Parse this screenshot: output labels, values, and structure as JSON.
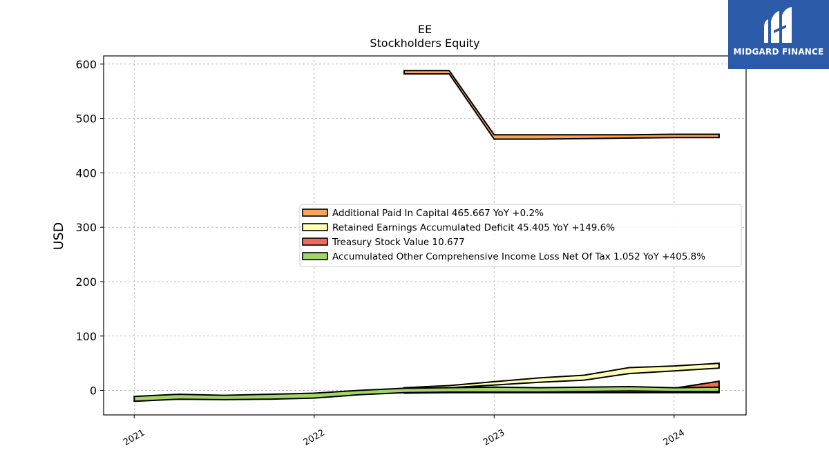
{
  "chart_data": {
    "type": "area",
    "title": "EE",
    "subtitle": "Stockholders  Equity",
    "ylabel": "USD",
    "xlabel": "",
    "ylim": [
      -45,
      615
    ],
    "xlim": [
      2020.83,
      2024.4
    ],
    "yticks": [
      0,
      100,
      200,
      300,
      400,
      500,
      600
    ],
    "xticks": [
      2021,
      2022,
      2023,
      2024
    ],
    "xtick_labels": [
      "2021",
      "2022",
      "2023",
      "2024"
    ],
    "grid": true,
    "legend_position": "center-right",
    "series": [
      {
        "name": "Additional Paid In Capital  465.667 YoY +0.2%",
        "color": "#f9a65a",
        "x": [
          2022.5,
          2022.75,
          2023.0,
          2023.25,
          2023.5,
          2023.75,
          2024.0,
          2024.25
        ],
        "lower": [
          582,
          582,
          462,
          462,
          463,
          464,
          465,
          465
        ],
        "upper": [
          588,
          588,
          470,
          470,
          470,
          470,
          471,
          471
        ]
      },
      {
        "name": "Retained Earnings Accumulated Deficit  45.405 YoY +149.6%",
        "color": "#ffffb3",
        "x": [
          2022.5,
          2022.75,
          2023.0,
          2023.25,
          2023.5,
          2023.75,
          2024.0,
          2024.25
        ],
        "lower": [
          2,
          5,
          10,
          15,
          19,
          31,
          36,
          41
        ],
        "upper": [
          5,
          9,
          16,
          23,
          28,
          42,
          45,
          50
        ]
      },
      {
        "name": "Treasury Stock Value  10.677",
        "color": "#ef6b5e",
        "x": [
          2022.5,
          2022.75,
          2023.0,
          2023.25,
          2023.5,
          2023.75,
          2024.0,
          2024.25
        ],
        "lower": [
          -5,
          -4,
          -4,
          -4,
          -4,
          -4,
          -4,
          -4
        ],
        "upper": [
          -3,
          -1,
          0,
          0,
          1,
          2,
          4,
          17
        ]
      },
      {
        "name": "Accumulated Other Comprehensive Income Loss Net Of Tax  1.052 YoY +405.8%",
        "color": "#a3d667",
        "x": [
          2021.0,
          2021.25,
          2021.5,
          2021.75,
          2022.0,
          2022.25,
          2022.5,
          2022.75,
          2023.0,
          2023.25,
          2023.5,
          2023.75,
          2024.0,
          2024.25
        ],
        "lower": [
          -20,
          -16,
          -17,
          -16,
          -14,
          -8,
          -4,
          -3,
          -3,
          -3,
          -2,
          -1,
          -2,
          -2
        ],
        "upper": [
          -11,
          -7,
          -9,
          -7,
          -5,
          0,
          4,
          5,
          6,
          5,
          6,
          7,
          5,
          6
        ]
      }
    ]
  },
  "logo": {
    "text": "MIDGARD FINANCE",
    "color": "#2b5aa8"
  }
}
